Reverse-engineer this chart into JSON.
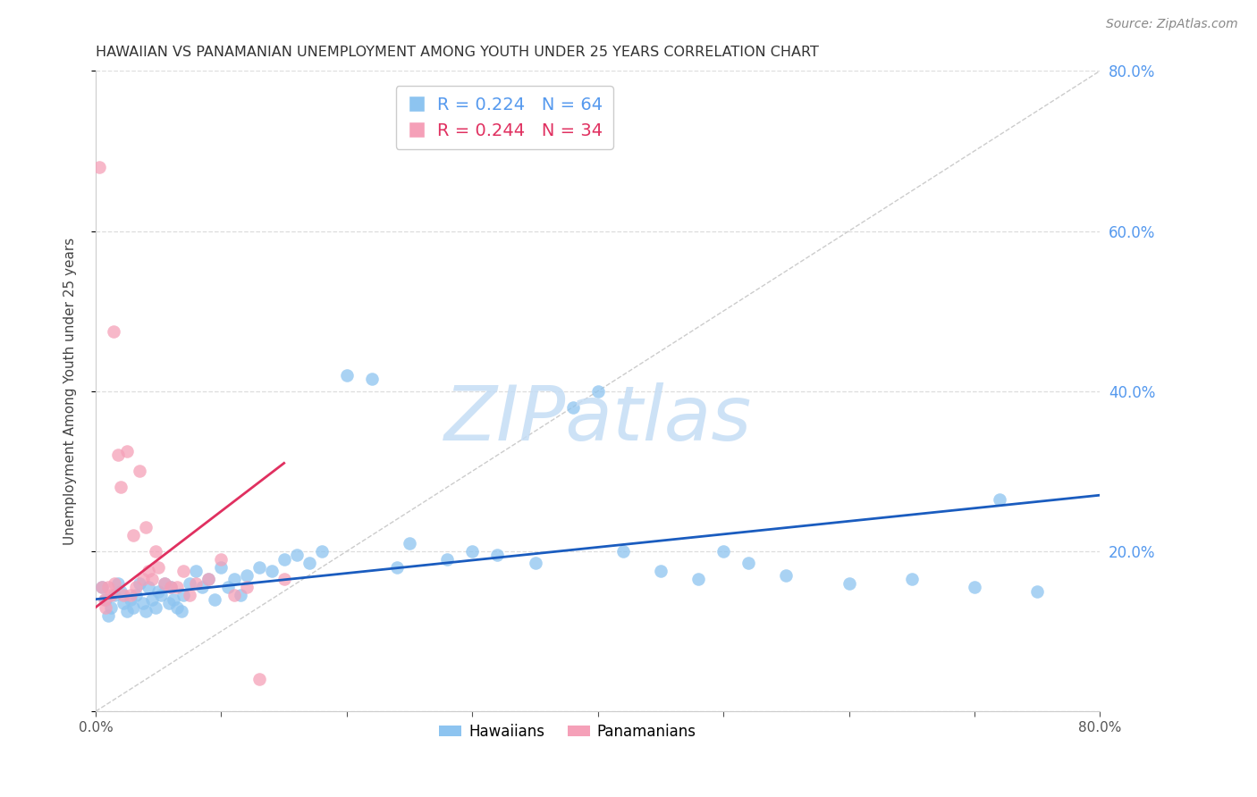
{
  "title": "HAWAIIAN VS PANAMANIAN UNEMPLOYMENT AMONG YOUTH UNDER 25 YEARS CORRELATION CHART",
  "source": "Source: ZipAtlas.com",
  "ylabel": "Unemployment Among Youth under 25 years",
  "xlim": [
    0,
    0.8
  ],
  "ylim": [
    0,
    0.8
  ],
  "legend1_label": "R = 0.224   N = 64",
  "legend2_label": "R = 0.244   N = 34",
  "hawaiians_color": "#8dc4f0",
  "panamanians_color": "#f5a0b8",
  "trend_hawaiians_color": "#1a5cbf",
  "trend_panamanians_color": "#e03060",
  "watermark": "ZIPatlas",
  "hawaiians_x": [
    0.005,
    0.008,
    0.01,
    0.012,
    0.015,
    0.018,
    0.02,
    0.022,
    0.025,
    0.028,
    0.03,
    0.032,
    0.035,
    0.038,
    0.04,
    0.042,
    0.045,
    0.048,
    0.05,
    0.052,
    0.055,
    0.058,
    0.06,
    0.062,
    0.065,
    0.068,
    0.07,
    0.075,
    0.08,
    0.085,
    0.09,
    0.095,
    0.1,
    0.105,
    0.11,
    0.115,
    0.12,
    0.13,
    0.14,
    0.15,
    0.16,
    0.17,
    0.18,
    0.2,
    0.22,
    0.24,
    0.25,
    0.28,
    0.3,
    0.32,
    0.35,
    0.38,
    0.4,
    0.42,
    0.45,
    0.48,
    0.5,
    0.52,
    0.55,
    0.6,
    0.65,
    0.7,
    0.72,
    0.75
  ],
  "hawaiians_y": [
    0.155,
    0.14,
    0.12,
    0.13,
    0.145,
    0.16,
    0.15,
    0.135,
    0.125,
    0.14,
    0.13,
    0.145,
    0.16,
    0.135,
    0.125,
    0.155,
    0.14,
    0.13,
    0.15,
    0.145,
    0.16,
    0.135,
    0.155,
    0.14,
    0.13,
    0.125,
    0.145,
    0.16,
    0.175,
    0.155,
    0.165,
    0.14,
    0.18,
    0.155,
    0.165,
    0.145,
    0.17,
    0.18,
    0.175,
    0.19,
    0.195,
    0.185,
    0.2,
    0.42,
    0.415,
    0.18,
    0.21,
    0.19,
    0.2,
    0.195,
    0.185,
    0.38,
    0.4,
    0.2,
    0.175,
    0.165,
    0.2,
    0.185,
    0.17,
    0.16,
    0.165,
    0.155,
    0.265,
    0.15
  ],
  "panamanians_x": [
    0.003,
    0.005,
    0.007,
    0.008,
    0.01,
    0.012,
    0.014,
    0.015,
    0.018,
    0.02,
    0.022,
    0.025,
    0.028,
    0.03,
    0.032,
    0.035,
    0.038,
    0.04,
    0.042,
    0.045,
    0.048,
    0.05,
    0.055,
    0.06,
    0.065,
    0.07,
    0.075,
    0.08,
    0.09,
    0.1,
    0.11,
    0.12,
    0.13,
    0.15
  ],
  "panamanians_y": [
    0.68,
    0.155,
    0.14,
    0.13,
    0.155,
    0.145,
    0.475,
    0.16,
    0.32,
    0.28,
    0.145,
    0.325,
    0.145,
    0.22,
    0.155,
    0.3,
    0.165,
    0.23,
    0.175,
    0.165,
    0.2,
    0.18,
    0.16,
    0.155,
    0.155,
    0.175,
    0.145,
    0.16,
    0.165,
    0.19,
    0.145,
    0.155,
    0.04,
    0.165
  ],
  "trend_h_x0": 0.0,
  "trend_h_y0": 0.14,
  "trend_h_x1": 0.8,
  "trend_h_y1": 0.27,
  "trend_p_x0": 0.0,
  "trend_p_y0": 0.13,
  "trend_p_x1": 0.15,
  "trend_p_y1": 0.31
}
